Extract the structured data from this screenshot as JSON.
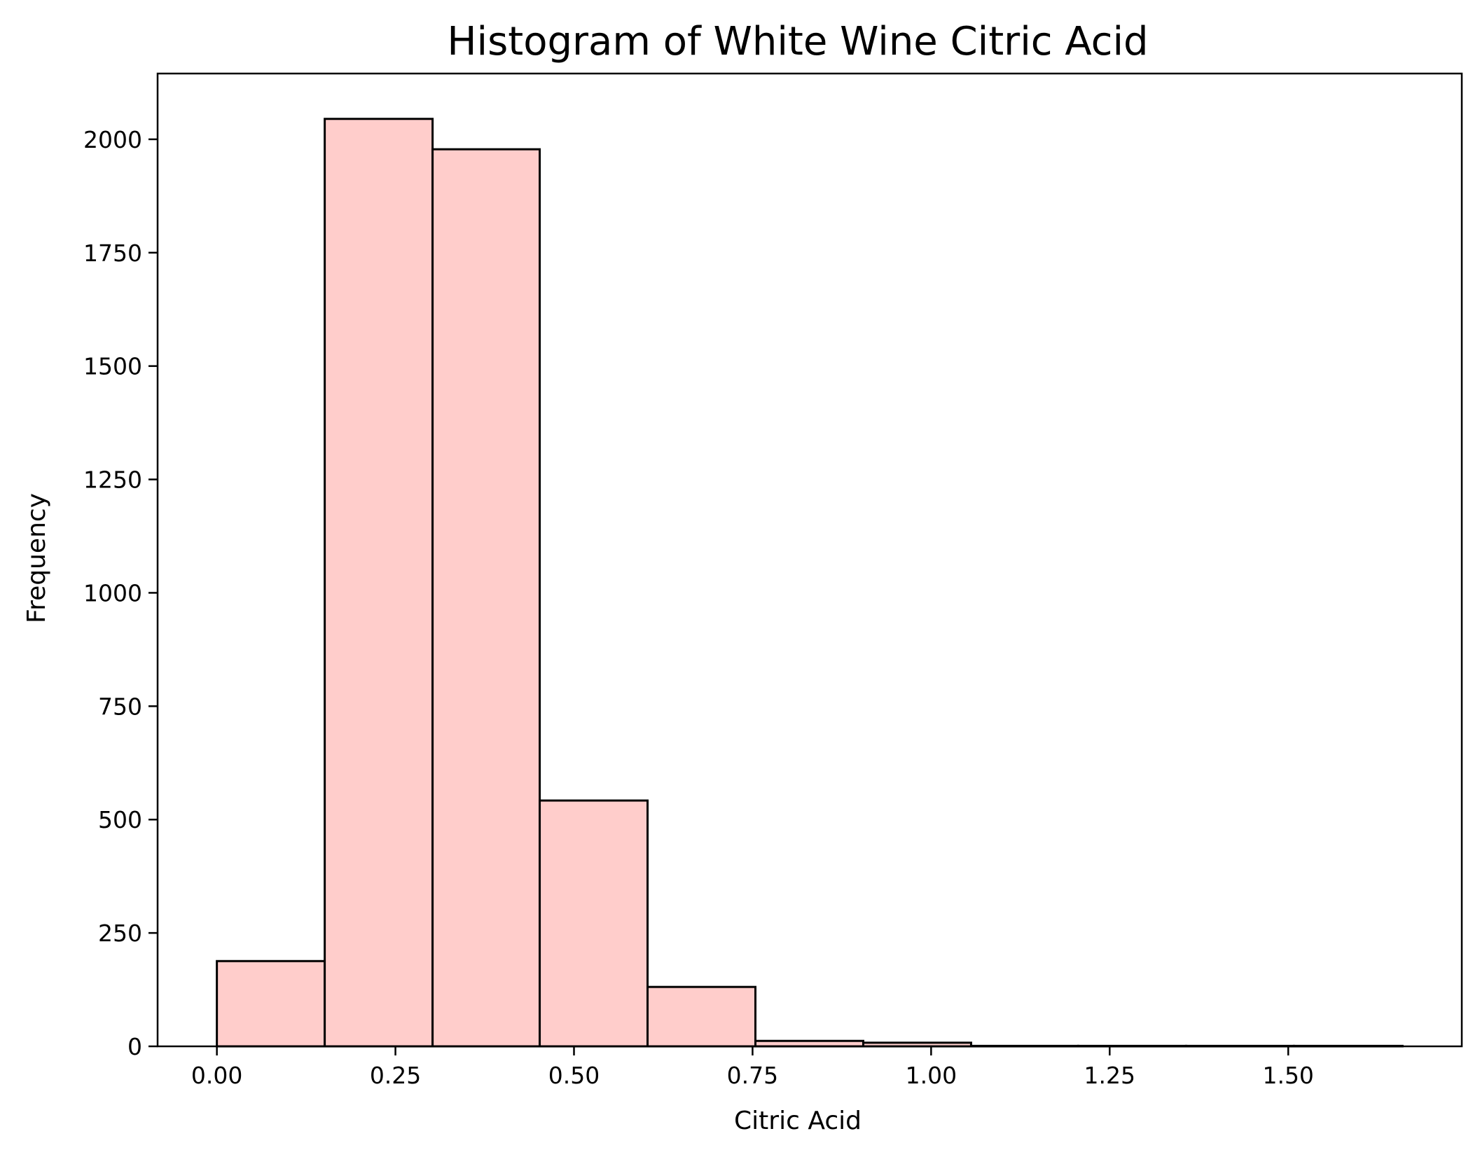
{
  "chart_data": {
    "type": "bar",
    "title": "Histogram of White Wine Citric Acid",
    "xlabel": "Citric Acid",
    "ylabel": "Frequency",
    "xlim": [
      -0.083,
      1.743
    ],
    "ylim": [
      0,
      2145
    ],
    "xticks": [
      0.0,
      0.25,
      0.5,
      0.75,
      1.0,
      1.25,
      1.5
    ],
    "xtick_labels": [
      "0.00",
      "0.25",
      "0.50",
      "0.75",
      "1.00",
      "1.25",
      "1.50"
    ],
    "yticks": [
      0,
      250,
      500,
      750,
      1000,
      1250,
      1500,
      1750,
      2000
    ],
    "ytick_labels": [
      "0",
      "250",
      "500",
      "750",
      "1000",
      "1250",
      "1500",
      "1750",
      "2000"
    ],
    "bin_edges": [
      0.0,
      0.151,
      0.302,
      0.452,
      0.603,
      0.754,
      0.905,
      1.056,
      1.206,
      1.357,
      1.508,
      1.66
    ],
    "values": [
      188,
      2045,
      1978,
      542,
      131,
      12,
      8,
      1,
      1,
      1,
      1
    ],
    "bar_color": "#ffcdcb",
    "edge_color": "#000000",
    "grid": false
  }
}
